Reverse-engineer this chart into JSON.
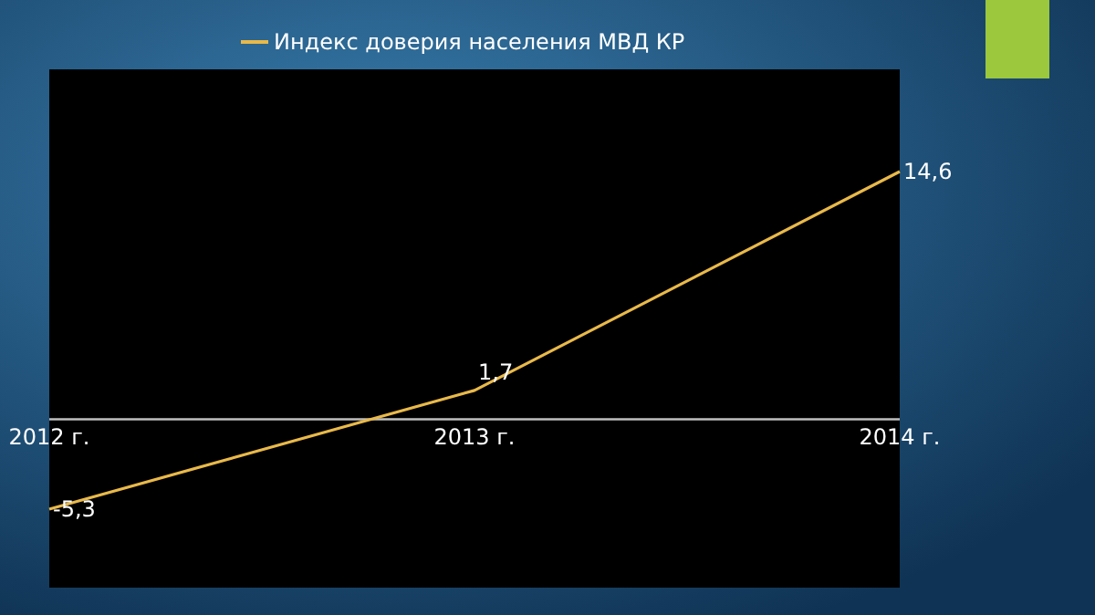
{
  "chart_data": {
    "type": "line",
    "categories": [
      "2012 г.",
      "2013 г.",
      "2014 г."
    ],
    "series": [
      {
        "name": "Индекс доверия населения МВД КР",
        "color": "#e9b949",
        "values": [
          -5.3,
          1.7,
          14.6
        ],
        "value_labels": [
          "-5,3",
          "1,7",
          "14,6"
        ]
      }
    ],
    "tick_labels": "x",
    "legend": "top",
    "grid": false,
    "marker": "none",
    "line_style": "solid"
  }
}
